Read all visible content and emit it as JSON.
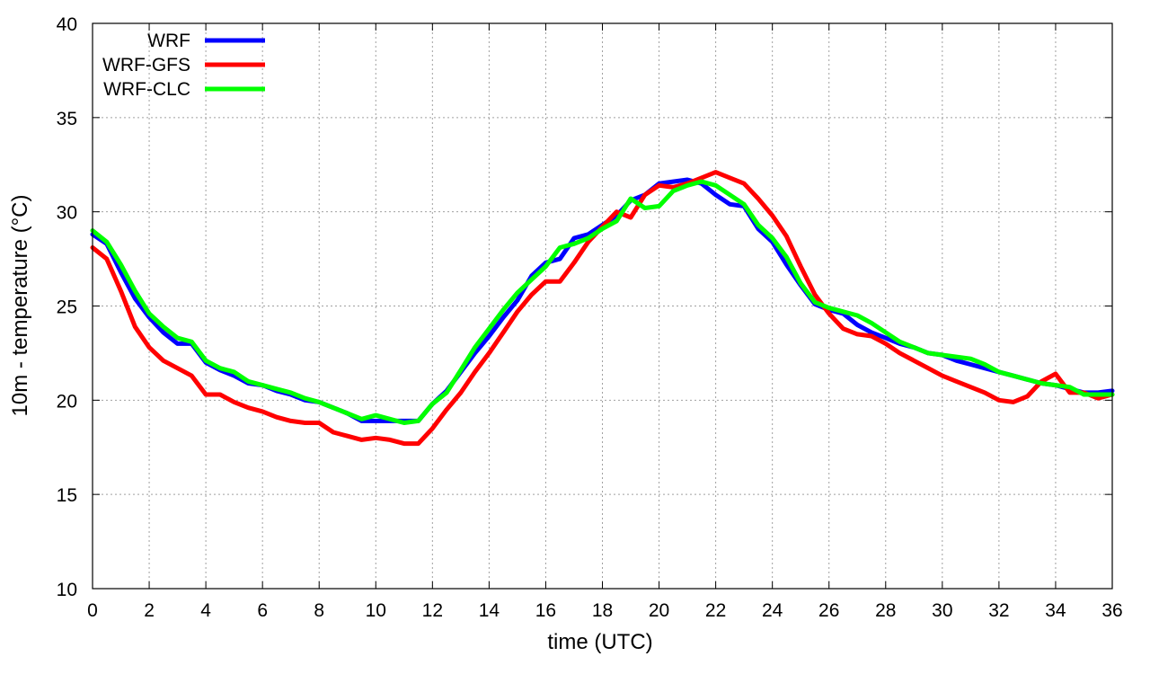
{
  "chart_data": {
    "type": "line",
    "title": "",
    "xlabel": "time (UTC)",
    "ylabel": "10m - temperature (°C)",
    "xlim": [
      0,
      36
    ],
    "ylim": [
      10,
      40
    ],
    "xticks": [
      0,
      2,
      4,
      6,
      8,
      10,
      12,
      14,
      16,
      18,
      20,
      22,
      24,
      26,
      28,
      30,
      32,
      34,
      36
    ],
    "yticks": [
      10,
      15,
      20,
      25,
      30,
      35,
      40
    ],
    "grid": true,
    "legend_position": "top-left",
    "x": [
      0,
      0.5,
      1,
      1.5,
      2,
      2.5,
      3,
      3.5,
      4,
      4.5,
      5,
      5.5,
      6,
      6.5,
      7,
      7.5,
      8,
      8.5,
      9,
      9.5,
      10,
      10.5,
      11,
      11.5,
      12,
      12.5,
      13,
      13.5,
      14,
      14.5,
      15,
      15.5,
      16,
      16.5,
      17,
      17.5,
      18,
      18.5,
      19,
      19.5,
      20,
      20.5,
      21,
      21.5,
      22,
      22.5,
      23,
      23.5,
      24,
      24.5,
      25,
      25.5,
      26,
      26.5,
      27,
      27.5,
      28,
      28.5,
      29,
      29.5,
      30,
      30.5,
      31,
      31.5,
      32,
      32.5,
      33,
      33.5,
      34,
      34.5,
      35,
      35.5,
      36
    ],
    "series": [
      {
        "name": "WRF",
        "color": "#0000ff",
        "values": [
          28.8,
          28.3,
          26.8,
          25.4,
          24.4,
          23.6,
          23.0,
          23.0,
          22.0,
          21.6,
          21.3,
          20.9,
          20.8,
          20.5,
          20.3,
          20.0,
          19.9,
          19.6,
          19.3,
          18.9,
          18.9,
          18.9,
          18.9,
          18.9,
          19.8,
          20.5,
          21.5,
          22.5,
          23.4,
          24.4,
          25.3,
          26.6,
          27.3,
          27.5,
          28.6,
          28.8,
          29.3,
          29.8,
          30.6,
          30.9,
          31.5,
          31.6,
          31.7,
          31.5,
          30.9,
          30.4,
          30.3,
          29.1,
          28.4,
          27.2,
          26.1,
          25.1,
          24.8,
          24.6,
          24.0,
          23.6,
          23.3,
          23.0,
          22.8,
          22.5,
          22.4,
          22.1,
          21.9,
          21.7,
          21.5,
          21.3,
          21.1,
          20.9,
          20.8,
          20.6,
          20.4,
          20.4,
          20.5
        ]
      },
      {
        "name": "WRF-GFS",
        "color": "#ff0000",
        "values": [
          28.1,
          27.5,
          25.8,
          23.9,
          22.8,
          22.1,
          21.7,
          21.3,
          20.3,
          20.3,
          19.9,
          19.6,
          19.4,
          19.1,
          18.9,
          18.8,
          18.8,
          18.3,
          18.1,
          17.9,
          18.0,
          17.9,
          17.7,
          17.7,
          18.5,
          19.5,
          20.4,
          21.5,
          22.5,
          23.6,
          24.7,
          25.6,
          26.3,
          26.3,
          27.3,
          28.4,
          29.2,
          30.0,
          29.7,
          30.9,
          31.4,
          31.3,
          31.5,
          31.8,
          32.1,
          31.8,
          31.5,
          30.7,
          29.8,
          28.7,
          27.1,
          25.6,
          24.6,
          23.8,
          23.5,
          23.4,
          23.0,
          22.5,
          22.1,
          21.7,
          21.3,
          21.0,
          20.7,
          20.4,
          20.0,
          19.9,
          20.2,
          21.0,
          21.4,
          20.4,
          20.4,
          20.1,
          20.3
        ]
      },
      {
        "name": "WRF-CLC",
        "color": "#00ff00",
        "values": [
          29.0,
          28.4,
          27.2,
          25.8,
          24.6,
          23.9,
          23.3,
          23.1,
          22.1,
          21.7,
          21.5,
          21.0,
          20.8,
          20.6,
          20.4,
          20.1,
          19.9,
          19.6,
          19.3,
          19.0,
          19.2,
          19.0,
          18.8,
          18.9,
          19.8,
          20.4,
          21.6,
          22.8,
          23.8,
          24.8,
          25.7,
          26.4,
          27.1,
          28.1,
          28.3,
          28.6,
          29.1,
          29.5,
          30.7,
          30.2,
          30.3,
          31.1,
          31.4,
          31.6,
          31.4,
          30.9,
          30.4,
          29.3,
          28.6,
          27.6,
          26.2,
          25.2,
          24.9,
          24.7,
          24.5,
          24.1,
          23.6,
          23.1,
          22.8,
          22.5,
          22.4,
          22.3,
          22.2,
          21.9,
          21.5,
          21.3,
          21.1,
          20.9,
          20.8,
          20.7,
          20.3,
          20.3,
          20.3
        ]
      }
    ]
  }
}
